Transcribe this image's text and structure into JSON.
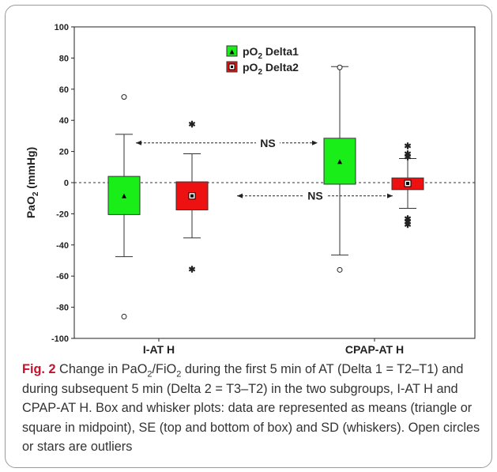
{
  "chart_data": {
    "type": "box",
    "ylim": [
      -100,
      100
    ],
    "yticks": [
      -100,
      -80,
      -60,
      -40,
      -20,
      0,
      20,
      40,
      60,
      80,
      100
    ],
    "ylabel_main": "PaO",
    "ylabel_sub": "2",
    "ylabel_unit": " (mmHg)",
    "categories": [
      "I-AT H",
      "CPAP-AT H"
    ],
    "legend": [
      {
        "label_main": "pO",
        "label_sub": "2",
        "label_rest": " Delta1",
        "color": "#19ee19"
      },
      {
        "label_main": "pO",
        "label_sub": "2",
        "label_rest": " Delta2",
        "color": "#ee1111"
      }
    ],
    "series": [
      {
        "name": "pO2 Delta1",
        "boxes": [
          {
            "category": "I-AT H",
            "mean": -8.5,
            "se_low": -20.5,
            "se_high": 4,
            "sd_low": -47.5,
            "sd_high": 31,
            "outliers_circle": [
              55,
              -86
            ],
            "outliers_star": []
          },
          {
            "category": "CPAP-AT H",
            "mean": 13.5,
            "se_low": -1,
            "se_high": 28.5,
            "sd_low": -46.5,
            "sd_high": 74.5,
            "outliers_circle": [
              74,
              -56
            ],
            "outliers_star": []
          }
        ]
      },
      {
        "name": "pO2 Delta2",
        "boxes": [
          {
            "category": "I-AT H",
            "mean": -8.5,
            "se_low": -17.5,
            "se_high": 0.5,
            "sd_low": -35.5,
            "sd_high": 18.5,
            "outliers_circle": [],
            "outliers_star": [
              38,
              -55
            ]
          },
          {
            "category": "CPAP-AT H",
            "mean": -0.5,
            "se_low": -4.5,
            "se_high": 3,
            "sd_low": -16.5,
            "sd_high": 15.5,
            "outliers_circle": [],
            "outliers_star": [
              24,
              19,
              17,
              -22.5,
              -24.5,
              -26.5
            ]
          }
        ]
      }
    ],
    "annotations": [
      {
        "text": "NS",
        "y": 25.5,
        "from_category": "I-AT H",
        "to_category": "CPAP-AT H",
        "series_from": 0,
        "series_to": 1
      },
      {
        "text": "NS",
        "y": -8.5,
        "from_category": "I-AT H",
        "to_category": "CPAP-AT H",
        "series_from": 1,
        "series_to": 2
      }
    ]
  },
  "caption": {
    "fig_label": "Fig. 2",
    "t1": "  Change in PaO",
    "s1": "2",
    "t2": "/FiO",
    "s2": "2",
    "t3": " during the first 5 min of AT (Delta 1 = T2–T1) and during subsequent 5 min (Delta 2 = T3–T2) in the two subgroups, I-AT H and CPAP-AT H. Box and whisker plots: data are represented as means (triangle or square in midpoint), SE (top and bottom of box) and SD (whiskers). Open circles or stars are outliers"
  }
}
